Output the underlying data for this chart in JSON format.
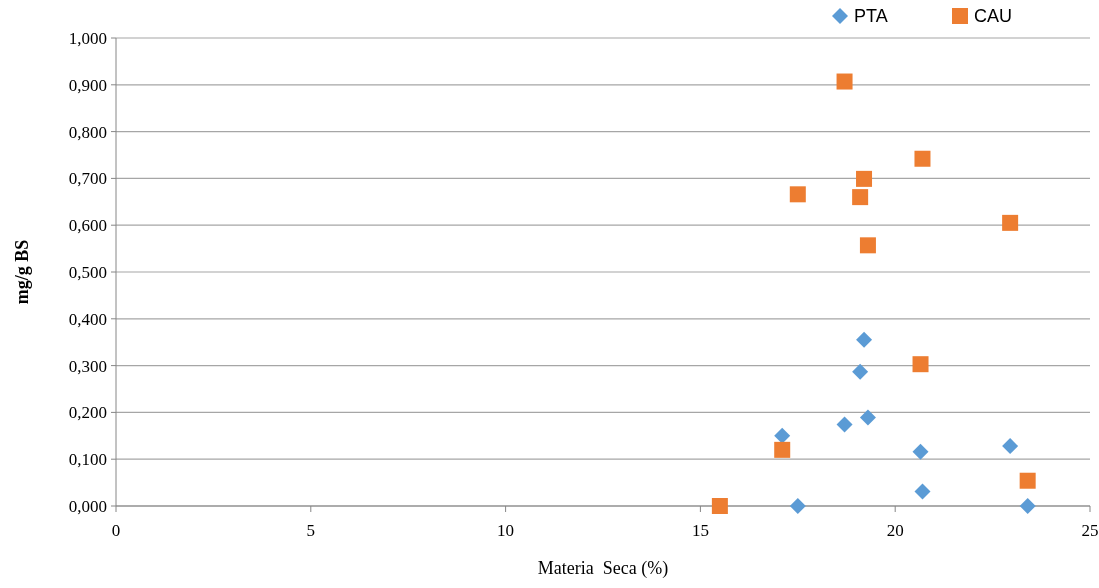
{
  "chart_data": {
    "type": "scatter",
    "xlabel": "Materia  Seca (%)",
    "ylabel": "mg/g BS",
    "xlim": [
      0,
      25
    ],
    "xticks": [
      0,
      5,
      10,
      15,
      20,
      25
    ],
    "ylim": [
      0,
      1
    ],
    "yticks": [
      {
        "value": 0,
        "label": "0,000"
      },
      {
        "value": 0.1,
        "label": "0,100"
      },
      {
        "value": 0.2,
        "label": "0,200"
      },
      {
        "value": 0.3,
        "label": "0,300"
      },
      {
        "value": 0.4,
        "label": "0,400"
      },
      {
        "value": 0.5,
        "label": "0,500"
      },
      {
        "value": 0.6,
        "label": "0,600"
      },
      {
        "value": 0.7,
        "label": "0,700"
      },
      {
        "value": 0.8,
        "label": "0,800"
      },
      {
        "value": 0.9,
        "label": "0,900"
      },
      {
        "value": 1,
        "label": "1,000"
      }
    ],
    "grid": "y",
    "legend": "top right",
    "series": [
      {
        "name": "PTA",
        "color": "#5b9bd5",
        "marker": "diamond",
        "x": [
          19.2,
          19.1,
          18.7,
          19.3,
          17.1,
          20.65,
          22.95,
          20.7,
          17.5,
          23.4
        ],
        "values": [
          0.355,
          0.287,
          0.174,
          0.189,
          0.15,
          0.116,
          0.128,
          0.031,
          0,
          0
        ]
      },
      {
        "name": "CAU",
        "color": "#ed7d31",
        "marker": "square",
        "x": [
          18.7,
          20.7,
          19.2,
          17.5,
          19.1,
          22.95,
          19.3,
          20.65,
          17.1,
          15.5,
          23.4
        ],
        "values": [
          0.907,
          0.742,
          0.699,
          0.666,
          0.66,
          0.605,
          0.557,
          0.303,
          0.12,
          0,
          0.054
        ]
      }
    ]
  }
}
